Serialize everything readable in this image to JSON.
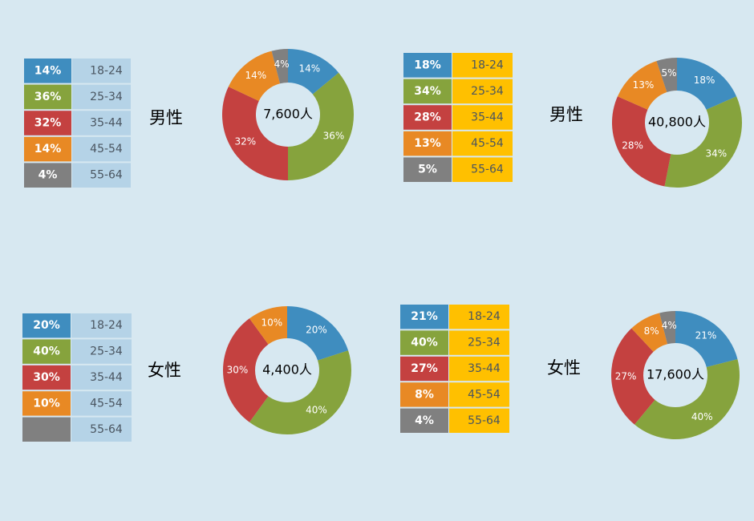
{
  "chart_data": [
    {
      "type": "pie",
      "title": "男性",
      "center_label": "7,600人",
      "categories": [
        "18-24",
        "25-34",
        "35-44",
        "45-54",
        "55-64"
      ],
      "values": [
        14,
        36,
        32,
        14,
        4
      ],
      "value_labels": [
        "14%",
        "36%",
        "32%",
        "14%",
        "4%"
      ],
      "colors": [
        "#3f8dbf",
        "#86a33d",
        "#c44140",
        "#e88924",
        "#808080"
      ],
      "label_color": "#b5d3e7"
    },
    {
      "type": "pie",
      "title": "男性",
      "center_label": "40,800人",
      "categories": [
        "18-24",
        "25-34",
        "35-44",
        "45-54",
        "55-64"
      ],
      "values": [
        18,
        34,
        28,
        13,
        5
      ],
      "value_labels": [
        "18%",
        "34%",
        "28%",
        "13%",
        "5%"
      ],
      "colors": [
        "#3f8dbf",
        "#86a33d",
        "#c44140",
        "#e88924",
        "#808080"
      ],
      "label_color": "#ffc000"
    },
    {
      "type": "pie",
      "title": "女性",
      "center_label": "4,400人",
      "categories": [
        "18-24",
        "25-34",
        "35-44",
        "45-54",
        "55-64"
      ],
      "values": [
        20,
        40,
        30,
        10,
        0
      ],
      "value_labels": [
        "20%",
        "40%",
        "30%",
        "10%",
        null
      ],
      "colors": [
        "#3f8dbf",
        "#86a33d",
        "#c44140",
        "#e88924",
        "#808080"
      ],
      "label_color": "#b5d3e7"
    },
    {
      "type": "pie",
      "title": "女性",
      "center_label": "17,600人",
      "categories": [
        "18-24",
        "25-34",
        "35-44",
        "45-54",
        "55-64"
      ],
      "values": [
        21,
        40,
        27,
        8,
        4
      ],
      "value_labels": [
        "21%",
        "40%",
        "27%",
        "8%",
        "4%"
      ],
      "colors": [
        "#3f8dbf",
        "#86a33d",
        "#c44140",
        "#e88924",
        "#808080"
      ],
      "label_color": "#ffc000"
    }
  ]
}
